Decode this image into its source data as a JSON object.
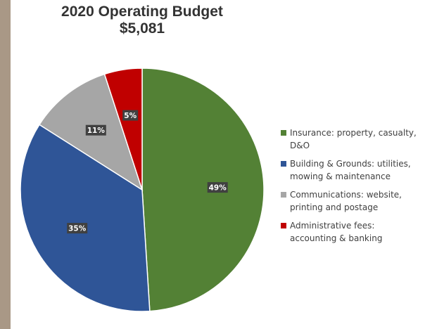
{
  "chart_data": {
    "type": "pie",
    "title": "2020 Operating Budget",
    "subtitle": "$5,081",
    "slices": [
      {
        "label": "Insurance: property, casualty, D&O",
        "value": 49,
        "data_label": "49%",
        "color": "#538135"
      },
      {
        "label": "Building & Grounds: utilities, mowing & maintenance",
        "value": 35,
        "data_label": "35%",
        "color": "#2f5597"
      },
      {
        "label": "Communications: website, printing and postage",
        "value": 11,
        "data_label": "11%",
        "color": "#a6a6a6"
      },
      {
        "label": "Administrative fees: accounting & banking",
        "value": 5,
        "data_label": "5%",
        "color": "#c00000"
      }
    ],
    "legend_position": "right",
    "start_angle_deg": 0,
    "direction": "clockwise"
  }
}
